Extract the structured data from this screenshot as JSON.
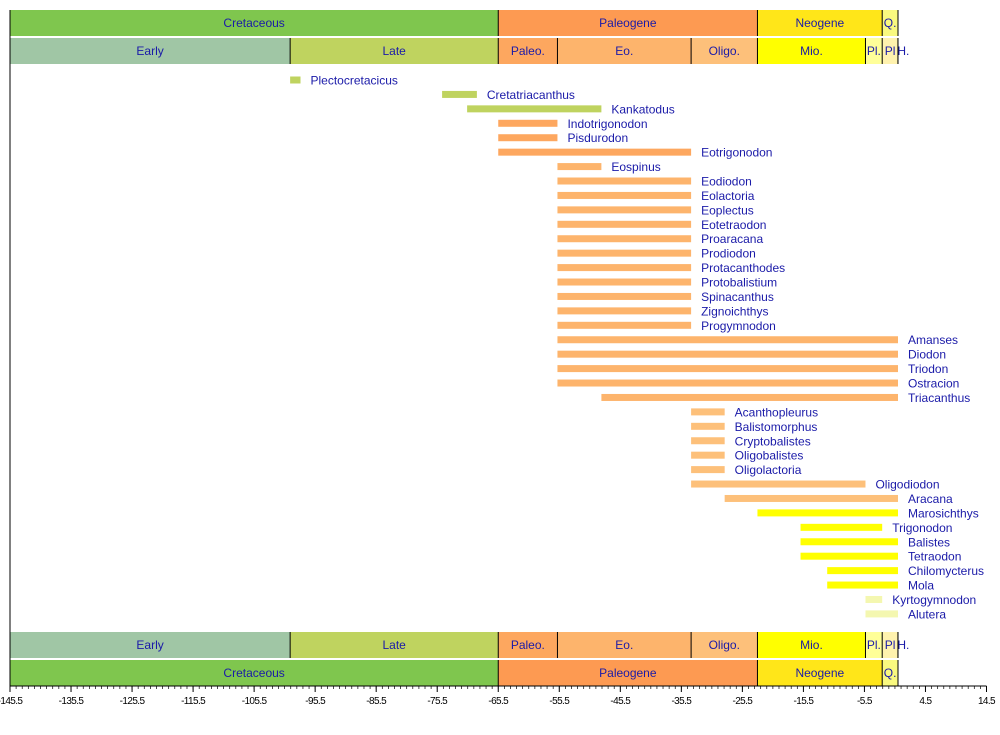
{
  "chart_data": {
    "type": "range-timeline",
    "xlabel": "",
    "ylabel": "",
    "xlim": [
      -145.5,
      14.5
    ],
    "ticks": [
      "-145.5",
      "-135.5",
      "-125.5",
      "-115.5",
      "-105.5",
      "-95.5",
      "-85.5",
      "-75.5",
      "-65.5",
      "-55.5",
      "-45.5",
      "-35.5",
      "-25.5",
      "-15.5",
      "-5.5",
      "4.5",
      "14.5"
    ],
    "minor_tick_step": 1,
    "text_color": "#1a1aa8",
    "periods": [
      {
        "name": "Cretaceous",
        "start": -145.5,
        "end": -65.5,
        "color": "#7fc64e"
      },
      {
        "name": "Paleogene",
        "start": -65.5,
        "end": -23.03,
        "color": "#fd9a52"
      },
      {
        "name": "Neogene",
        "start": -23.03,
        "end": -2.59,
        "color": "#ffe619"
      },
      {
        "name": "Q.",
        "start": -2.59,
        "end": 0,
        "color": "#f9f97f"
      }
    ],
    "epochs": [
      {
        "name": "Early",
        "start": -145.5,
        "end": -99.6,
        "color": "#a0c6a5"
      },
      {
        "name": "Late",
        "start": -99.6,
        "end": -65.5,
        "color": "#bfd35f"
      },
      {
        "name": "Paleo.",
        "start": -65.5,
        "end": -55.8,
        "color": "#fda75f"
      },
      {
        "name": "Eo.",
        "start": -55.8,
        "end": -33.9,
        "color": "#fdb46c"
      },
      {
        "name": "Oligo.",
        "start": -33.9,
        "end": -23.03,
        "color": "#fdc07a"
      },
      {
        "name": "Mio.",
        "start": -23.03,
        "end": -5.33,
        "color": "#ffff00"
      },
      {
        "name": "Pl.",
        "start": -5.33,
        "end": -2.59,
        "color": "#ffff99"
      },
      {
        "name": "Pl",
        "start": -2.59,
        "end": -0.01,
        "color": "#fff2ae"
      },
      {
        "name": "H.",
        "start": -0.01,
        "end": 0,
        "color": "#fef2e0"
      }
    ],
    "taxa": [
      {
        "name": "Plectocretacicus",
        "start": -99.6,
        "end": -97.9,
        "color": "#bfd35f"
      },
      {
        "name": "Cretatriacanthus",
        "start": -74.7,
        "end": -69.0,
        "color": "#bfd35f"
      },
      {
        "name": "Kankatodus",
        "start": -70.6,
        "end": -48.6,
        "color": "#bfd35f"
      },
      {
        "name": "Indotrigonodon",
        "start": -65.5,
        "end": -55.8,
        "color": "#fda75f"
      },
      {
        "name": "Pisdurodon",
        "start": -65.5,
        "end": -55.8,
        "color": "#fda75f"
      },
      {
        "name": "Eotrigonodon",
        "start": -65.5,
        "end": -33.9,
        "color": "#fda75f"
      },
      {
        "name": "Eospinus",
        "start": -55.8,
        "end": -48.6,
        "color": "#fdb46c"
      },
      {
        "name": "Eodiodon",
        "start": -55.8,
        "end": -33.9,
        "color": "#fdb46c"
      },
      {
        "name": "Eolactoria",
        "start": -55.8,
        "end": -33.9,
        "color": "#fdb46c"
      },
      {
        "name": "Eoplectus",
        "start": -55.8,
        "end": -33.9,
        "color": "#fdb46c"
      },
      {
        "name": "Eotetraodon",
        "start": -55.8,
        "end": -33.9,
        "color": "#fdb46c"
      },
      {
        "name": "Proaracana",
        "start": -55.8,
        "end": -33.9,
        "color": "#fdb46c"
      },
      {
        "name": "Prodiodon",
        "start": -55.8,
        "end": -33.9,
        "color": "#fdb46c"
      },
      {
        "name": "Protacanthodes",
        "start": -55.8,
        "end": -33.9,
        "color": "#fdb46c"
      },
      {
        "name": "Protobalistium",
        "start": -55.8,
        "end": -33.9,
        "color": "#fdb46c"
      },
      {
        "name": "Spinacanthus",
        "start": -55.8,
        "end": -33.9,
        "color": "#fdb46c"
      },
      {
        "name": "Zignoichthys",
        "start": -55.8,
        "end": -33.9,
        "color": "#fdb46c"
      },
      {
        "name": "Progymnodon",
        "start": -55.8,
        "end": -33.9,
        "color": "#fdb46c"
      },
      {
        "name": "Amanses",
        "start": -55.8,
        "end": 0,
        "color": "#fdb46c"
      },
      {
        "name": "Diodon",
        "start": -55.8,
        "end": 0,
        "color": "#fdb46c"
      },
      {
        "name": "Triodon",
        "start": -55.8,
        "end": 0,
        "color": "#fdb46c"
      },
      {
        "name": "Ostracion",
        "start": -55.8,
        "end": 0,
        "color": "#fdb46c"
      },
      {
        "name": "Triacanthus",
        "start": -48.6,
        "end": 0,
        "color": "#fdb46c"
      },
      {
        "name": "Acanthopleurus",
        "start": -33.9,
        "end": -28.4,
        "color": "#fdc07a"
      },
      {
        "name": "Balistomorphus",
        "start": -33.9,
        "end": -28.4,
        "color": "#fdc07a"
      },
      {
        "name": "Cryptobalistes",
        "start": -33.9,
        "end": -28.4,
        "color": "#fdc07a"
      },
      {
        "name": "Oligobalistes",
        "start": -33.9,
        "end": -28.4,
        "color": "#fdc07a"
      },
      {
        "name": "Oligolactoria",
        "start": -33.9,
        "end": -28.4,
        "color": "#fdc07a"
      },
      {
        "name": "Oligodiodon",
        "start": -33.9,
        "end": -5.33,
        "color": "#fdc07a"
      },
      {
        "name": "Aracana",
        "start": -28.4,
        "end": 0,
        "color": "#fdc07a"
      },
      {
        "name": "Marosichthys",
        "start": -23.03,
        "end": 0,
        "color": "#ffff00"
      },
      {
        "name": "Trigonodon",
        "start": -15.97,
        "end": -2.59,
        "color": "#ffff00"
      },
      {
        "name": "Balistes",
        "start": -15.97,
        "end": 0,
        "color": "#ffff00"
      },
      {
        "name": "Tetraodon",
        "start": -15.97,
        "end": 0,
        "color": "#ffff00"
      },
      {
        "name": "Chilomycterus",
        "start": -11.6,
        "end": 0,
        "color": "#ffff00"
      },
      {
        "name": "Mola",
        "start": -11.6,
        "end": 0,
        "color": "#ffff00"
      },
      {
        "name": "Kyrtogymnodon",
        "start": -5.33,
        "end": -2.59,
        "color": "#f4f7b0"
      },
      {
        "name": "Alutera",
        "start": -5.33,
        "end": 0,
        "color": "#f4f7b0"
      }
    ]
  }
}
